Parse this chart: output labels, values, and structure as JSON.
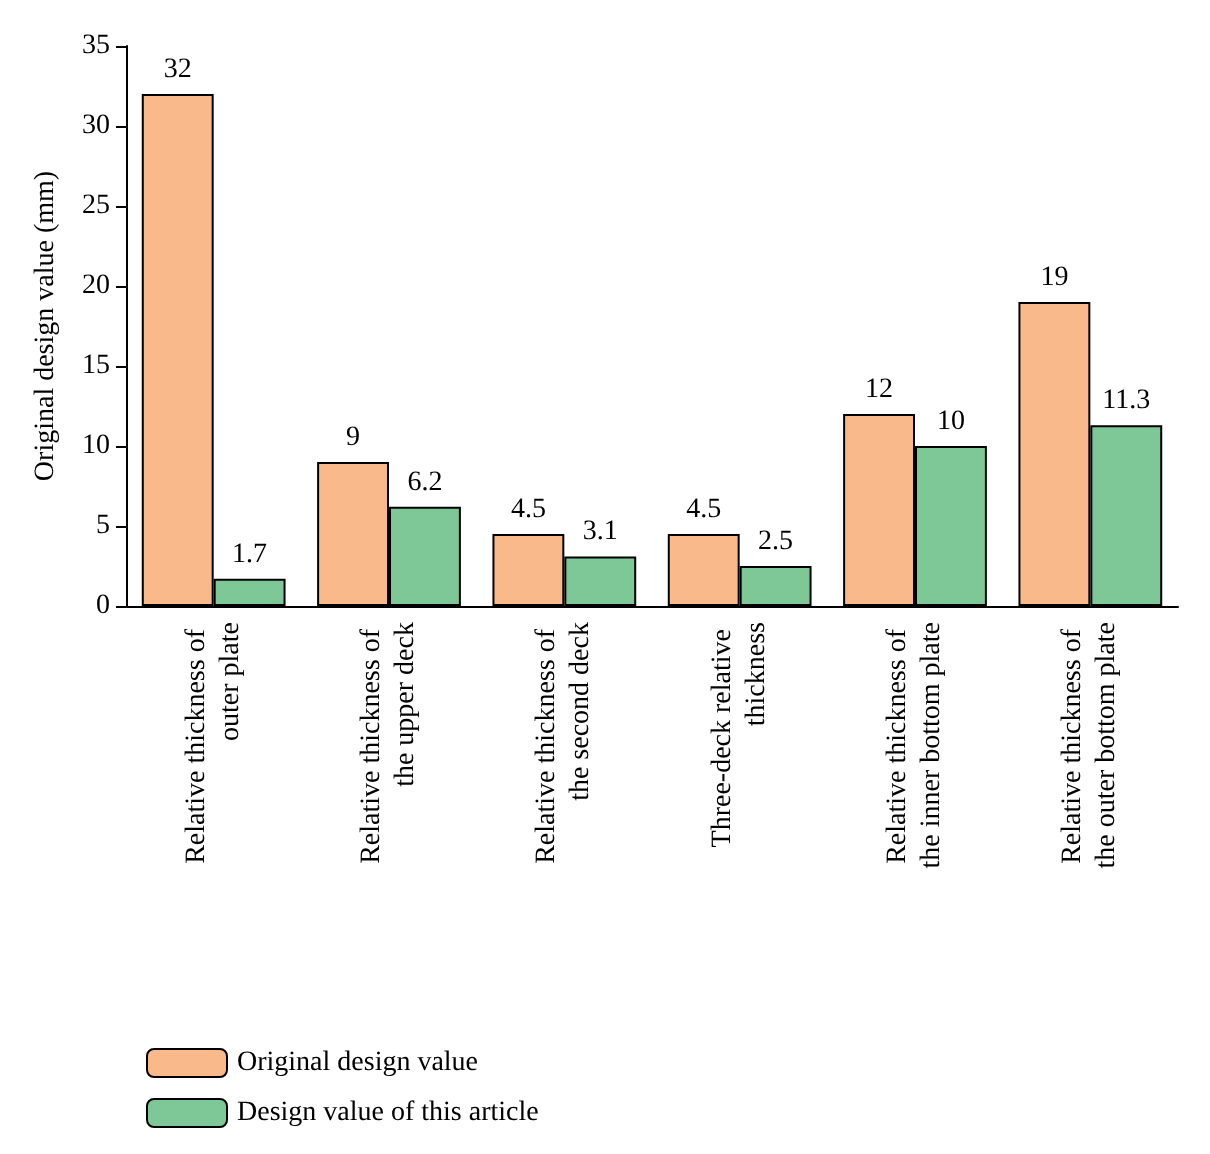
{
  "chart_data": {
    "type": "bar",
    "ylabel": "Original design value (mm)",
    "categories": [
      "Relative thickness of outer plate",
      "Relative thickness of the upper deck",
      "Relative thickness of the second deck",
      "Three-deck relative thickness",
      "Relative thickness of the inner bottom plate",
      "Relative thickness of the outer bottom plate"
    ],
    "series": [
      {
        "name": "Original design value",
        "color": "#f9b98a",
        "values": [
          32,
          9,
          4.5,
          4.5,
          12,
          19
        ]
      },
      {
        "name": "Design value of this article",
        "color": "#7dc896",
        "values": [
          1.7,
          6.2,
          3.1,
          2.5,
          10,
          11.3
        ]
      }
    ],
    "ylim": [
      0,
      35
    ],
    "yticks": [
      0,
      5,
      10,
      15,
      20,
      25,
      30,
      35
    ],
    "data_labels": true,
    "grid": false,
    "legend": "bottom left"
  }
}
